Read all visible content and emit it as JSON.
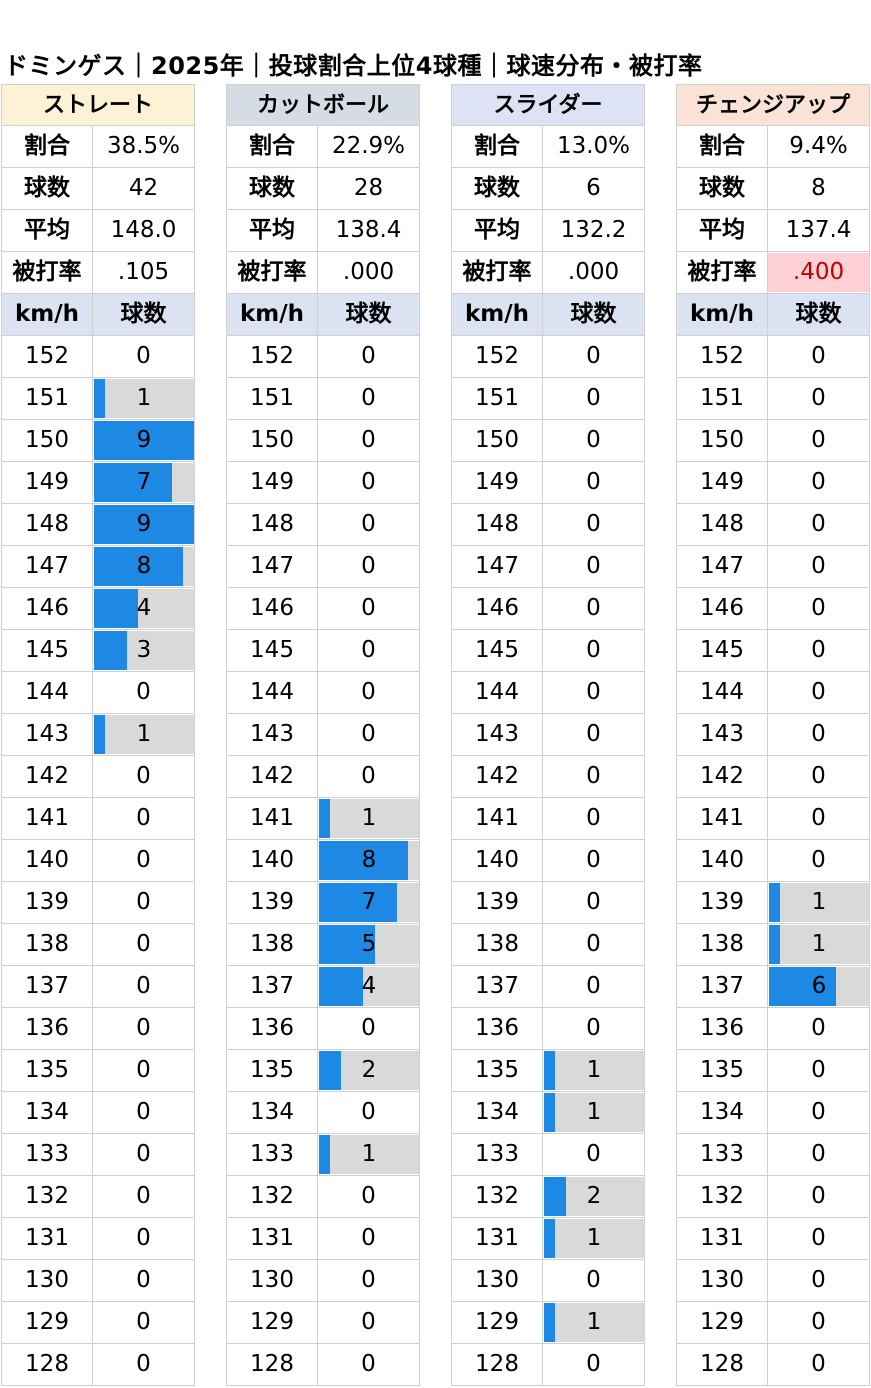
{
  "title": "ドミンゲス｜2025年｜投球割合上位4球種｜球速分布・被打率",
  "stat_labels": [
    "割合",
    "球数",
    "平均",
    "被打率"
  ],
  "col_headers": [
    "km/h",
    "球数"
  ],
  "speeds": [
    152,
    151,
    150,
    149,
    148,
    147,
    146,
    145,
    144,
    143,
    142,
    141,
    140,
    139,
    138,
    137,
    136,
    135,
    134,
    133,
    132,
    131,
    130,
    129,
    128
  ],
  "colors": {
    "bar": "#1e88e5",
    "bar_bg": "#d9d9d9",
    "header_bg": "#dbe3f3",
    "highlight_bg": "#ffd0d6",
    "highlight_text": "#c00000"
  },
  "chart_data": [
    {
      "type": "bar",
      "name": "ストレート",
      "header_color": "#fdf1d6",
      "stats": {
        "ratio": "38.5%",
        "count": "42",
        "avg": "148.0",
        "avg_against": ".105",
        "highlight": false
      },
      "max": 9,
      "values": [
        0,
        1,
        9,
        7,
        9,
        8,
        4,
        3,
        0,
        1,
        0,
        0,
        0,
        0,
        0,
        0,
        0,
        0,
        0,
        0,
        0,
        0,
        0,
        0,
        0
      ]
    },
    {
      "type": "bar",
      "name": "カットボール",
      "header_color": "#d6dce4",
      "stats": {
        "ratio": "22.9%",
        "count": "28",
        "avg": "138.4",
        "avg_against": ".000",
        "highlight": false
      },
      "max": 9,
      "values": [
        0,
        0,
        0,
        0,
        0,
        0,
        0,
        0,
        0,
        0,
        0,
        1,
        8,
        7,
        5,
        4,
        0,
        2,
        0,
        1,
        0,
        0,
        0,
        0,
        0
      ]
    },
    {
      "type": "bar",
      "name": "スライダー",
      "header_color": "#dde3f5",
      "stats": {
        "ratio": "13.0%",
        "count": "6",
        "avg": "132.2",
        "avg_against": ".000",
        "highlight": false
      },
      "max": 9,
      "values": [
        0,
        0,
        0,
        0,
        0,
        0,
        0,
        0,
        0,
        0,
        0,
        0,
        0,
        0,
        0,
        0,
        0,
        1,
        1,
        0,
        2,
        1,
        0,
        1,
        0
      ]
    },
    {
      "type": "bar",
      "name": "チェンジアップ",
      "header_color": "#fbe2d6",
      "stats": {
        "ratio": "9.4%",
        "count": "8",
        "avg": "137.4",
        "avg_against": ".400",
        "highlight": true
      },
      "max": 9,
      "values": [
        0,
        0,
        0,
        0,
        0,
        0,
        0,
        0,
        0,
        0,
        0,
        0,
        0,
        1,
        1,
        6,
        0,
        0,
        0,
        0,
        0,
        0,
        0,
        0,
        0
      ]
    }
  ]
}
